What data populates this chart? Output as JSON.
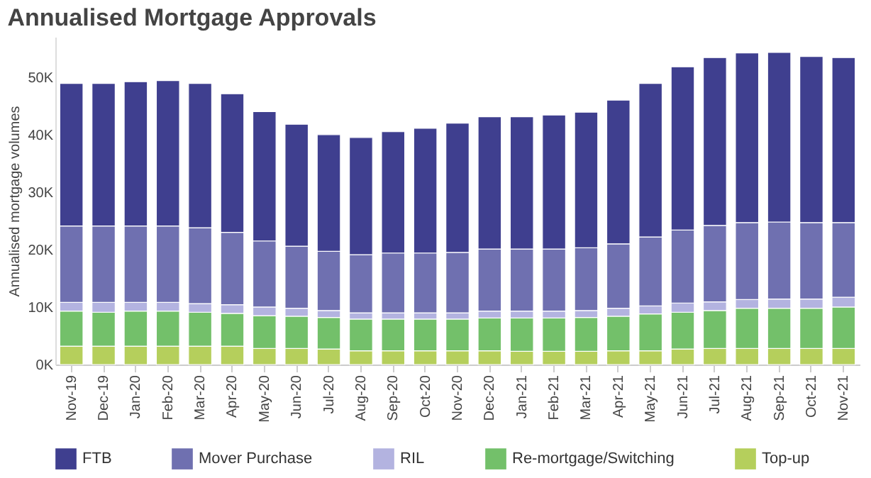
{
  "chart_data": {
    "type": "bar",
    "title": "Annualised Mortgage Approvals",
    "ylabel": "Annualised mortgage volumes",
    "categories": [
      "Nov-19",
      "Dec-19",
      "Jan-20",
      "Feb-20",
      "Mar-20",
      "Apr-20",
      "May-20",
      "Jun-20",
      "Jul-20",
      "Aug-20",
      "Sep-20",
      "Oct-20",
      "Nov-20",
      "Dec-20",
      "Jan-21",
      "Feb-21",
      "Mar-21",
      "Apr-21",
      "May-21",
      "Jun-21",
      "Jul-21",
      "Aug-21",
      "Sep-21",
      "Oct-21",
      "Nov-21"
    ],
    "stacked": true,
    "series": [
      {
        "name": "Top-up",
        "color": "#b5cf5c",
        "values": [
          3.2,
          3.2,
          3.2,
          3.2,
          3.2,
          3.2,
          2.8,
          2.8,
          2.7,
          2.4,
          2.4,
          2.4,
          2.4,
          2.4,
          2.3,
          2.3,
          2.3,
          2.4,
          2.4,
          2.7,
          2.8,
          2.8,
          2.8,
          2.8,
          2.8
        ]
      },
      {
        "name": "Re-mortgage/Switching",
        "color": "#73c06a",
        "values": [
          6.1,
          5.9,
          6.1,
          6.1,
          5.9,
          5.7,
          5.7,
          5.6,
          5.5,
          5.5,
          5.5,
          5.5,
          5.5,
          5.7,
          5.8,
          5.8,
          5.9,
          6.0,
          6.4,
          6.4,
          6.6,
          7.0,
          7.0,
          7.0,
          7.2
        ]
      },
      {
        "name": "RIL",
        "color": "#b3b3e0",
        "values": [
          1.5,
          1.7,
          1.5,
          1.5,
          1.5,
          1.5,
          1.5,
          1.4,
          1.2,
          1.1,
          1.1,
          1.1,
          1.1,
          1.2,
          1.2,
          1.2,
          1.2,
          1.4,
          1.4,
          1.6,
          1.5,
          1.5,
          1.6,
          1.6,
          1.7
        ]
      },
      {
        "name": "Mover Purchase",
        "color": "#6f70b0",
        "values": [
          13.3,
          13.3,
          13.3,
          13.3,
          13.2,
          12.6,
          11.5,
          10.8,
          10.3,
          10.1,
          10.4,
          10.4,
          10.5,
          10.8,
          10.8,
          10.8,
          10.9,
          11.2,
          12.0,
          12.7,
          13.3,
          13.4,
          13.4,
          13.3,
          13.0
        ]
      },
      {
        "name": "FTB",
        "color": "#3f3f8f",
        "values": [
          24.8,
          24.8,
          25.1,
          25.3,
          25.1,
          24.1,
          22.5,
          21.2,
          20.3,
          20.4,
          21.1,
          21.7,
          22.5,
          23.0,
          23.0,
          23.3,
          23.6,
          25.0,
          26.7,
          28.4,
          29.2,
          29.5,
          29.5,
          28.9,
          28.7
        ]
      }
    ],
    "ylim": [
      0,
      57
    ],
    "yticks": [
      {
        "value": 0,
        "label": "0K"
      },
      {
        "value": 10,
        "label": "10K"
      },
      {
        "value": 20,
        "label": "20K"
      },
      {
        "value": 30,
        "label": "30K"
      },
      {
        "value": 40,
        "label": "40K"
      },
      {
        "value": 50,
        "label": "50K"
      }
    ],
    "grid": false,
    "legend": "bottom"
  }
}
